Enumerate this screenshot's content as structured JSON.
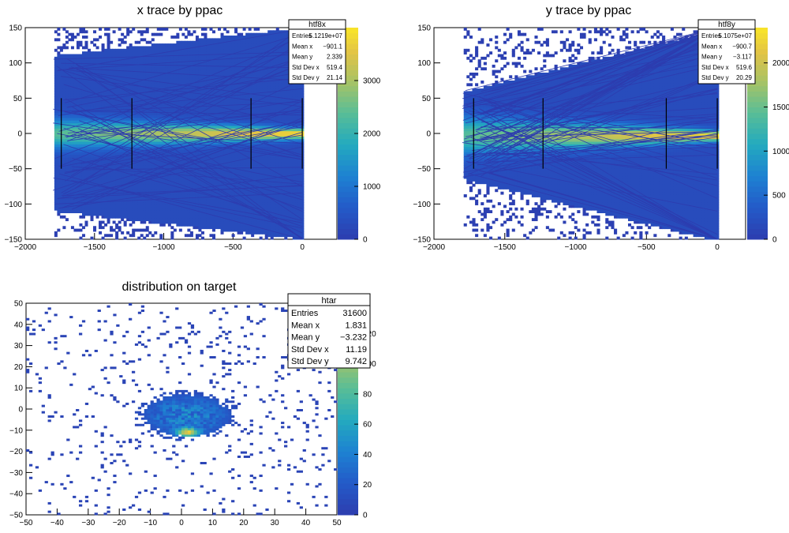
{
  "chart_data": [
    {
      "type": "heatmap",
      "title": "x trace by ppac",
      "xlim": [
        -2000,
        250
      ],
      "ylim": [
        -150,
        150
      ],
      "xticks": [
        -2000,
        -1500,
        -1000,
        -500,
        0
      ],
      "yticks": [
        -150,
        -100,
        -50,
        0,
        50,
        100,
        150
      ],
      "zlim": [
        0,
        4000
      ],
      "zticks": [
        0,
        1000,
        2000,
        3000
      ],
      "ppac_positions": [
        -1740,
        -1230,
        -370,
        0
      ],
      "stats": {
        "name": "htf8x",
        "rows": [
          {
            "label": "Entries",
            "value": "5.1219e+07"
          },
          {
            "label": "Mean x",
            "value": "−901.1"
          },
          {
            "label": "Mean y",
            "value": "2.339"
          },
          {
            "label": "Std Dev x",
            "value": "519.4"
          },
          {
            "label": "Std Dev y",
            "value": "21.14"
          }
        ]
      }
    },
    {
      "type": "heatmap",
      "title": "y trace by ppac",
      "xlim": [
        -2000,
        200
      ],
      "ylim": [
        -150,
        150
      ],
      "xticks": [
        -2000,
        -1500,
        -1000,
        -500,
        0
      ],
      "yticks": [
        -150,
        -100,
        -50,
        0,
        50,
        100,
        150
      ],
      "zlim": [
        0,
        2400
      ],
      "zticks": [
        0,
        500,
        1000,
        1500,
        2000
      ],
      "ppac_positions": [
        -1720,
        -1230,
        -360,
        0
      ],
      "stats": {
        "name": "htf8y",
        "rows": [
          {
            "label": "Entries",
            "value": "5.1075e+07"
          },
          {
            "label": "Mean x",
            "value": "−900.7"
          },
          {
            "label": "Mean y",
            "value": "−3.117"
          },
          {
            "label": "Std Dev x",
            "value": "519.6"
          },
          {
            "label": "Std Dev y",
            "value": "20.29"
          }
        ]
      }
    },
    {
      "type": "heatmap",
      "title": "distribution on target",
      "xlim": [
        -50,
        50
      ],
      "ylim": [
        -50,
        50
      ],
      "xticks": [
        -50,
        -40,
        -30,
        -20,
        -10,
        0,
        10,
        20,
        30,
        40,
        50
      ],
      "yticks": [
        -50,
        -40,
        -30,
        -20,
        -10,
        0,
        10,
        20,
        30,
        40,
        50
      ],
      "zlim": [
        0,
        140
      ],
      "zticks": [
        0,
        20,
        40,
        60,
        80,
        100,
        120
      ],
      "stats": {
        "name": "htar",
        "rows": [
          {
            "label": "Entries",
            "value": "31600"
          },
          {
            "label": "Mean x",
            "value": "1.831"
          },
          {
            "label": "Mean y",
            "value": "−3.232"
          },
          {
            "label": "Std Dev x",
            "value": "11.19"
          },
          {
            "label": "Std Dev y",
            "value": "9.742"
          }
        ]
      }
    }
  ]
}
